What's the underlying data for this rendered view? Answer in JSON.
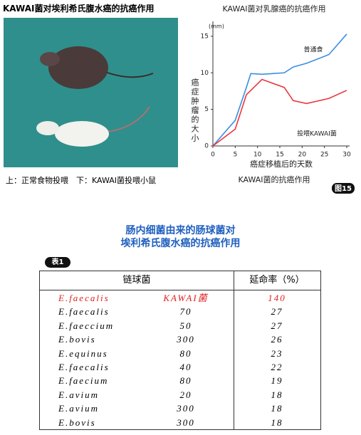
{
  "photo": {
    "title": "KAWAI菌对埃利希氏腹水癌的抗癌作用",
    "caption": "上：正常食物投喂　下：KAWAI菌投喂小鼠"
  },
  "chart_data": {
    "type": "line",
    "title": "KAWAI菌对乳腺癌的抗癌作用",
    "y_unit": "(mm)",
    "y_label": "癌症肿瘤的大小",
    "x_label": "癌症移植后的天数",
    "caption": "KAWAI菌的抗癌作用",
    "figure_label": "图15",
    "xlim": [
      0,
      30
    ],
    "xticks": [
      0,
      5,
      10,
      15,
      20,
      25,
      30
    ],
    "ylim": [
      0,
      16.5
    ],
    "yticks": [
      0,
      5,
      10,
      15
    ],
    "series": [
      {
        "name": "普通食",
        "color": "#3a8ee0",
        "x": [
          0,
          5,
          7.5,
          8.5,
          11,
          16,
          18,
          21,
          26,
          30
        ],
        "values": [
          0,
          3.5,
          8,
          9.9,
          9.8,
          10,
          10.8,
          11.3,
          12.5,
          15.3
        ]
      },
      {
        "name": "投喂KAWAI菌",
        "color": "#e8383d",
        "x": [
          0,
          5,
          7.5,
          11,
          16,
          18,
          21,
          26,
          30
        ],
        "values": [
          0,
          2.3,
          7,
          9.1,
          8,
          6.2,
          5.8,
          6.5,
          7.6
        ]
      }
    ]
  },
  "table": {
    "heading": [
      "肠内细菌由来的肠球菌对",
      "埃利希氏腹水癌的抗癌作用"
    ],
    "label": "表1",
    "columns": [
      "链球菌",
      "延命率（%）"
    ],
    "rows": [
      [
        "E.faecalis",
        "KAWAI菌",
        140
      ],
      [
        "E.faecalis",
        70,
        27
      ],
      [
        "E.faeccium",
        50,
        27
      ],
      [
        "E.bovis",
        300,
        26
      ],
      [
        "E.equinus",
        80,
        23
      ],
      [
        "E.faecalis",
        40,
        22
      ],
      [
        "E.faecium",
        80,
        19
      ],
      [
        "E.avium",
        20,
        18
      ],
      [
        "E.avium",
        300,
        18
      ],
      [
        "E.bovis",
        300,
        18
      ]
    ]
  }
}
